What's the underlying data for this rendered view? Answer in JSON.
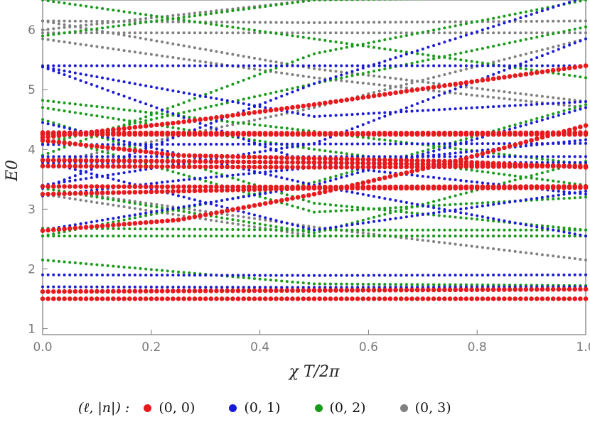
{
  "chart_data": {
    "type": "scatter",
    "xlabel": "χ T/2π",
    "ylabel": "E0",
    "xlim": [
      0.0,
      1.0
    ],
    "ylim": [
      0.9,
      6.5
    ],
    "x_ticks": [
      "0.0",
      "0.2",
      "0.4",
      "0.6",
      "0.8",
      "1.0"
    ],
    "y_ticks": [
      "1",
      "2",
      "3",
      "4",
      "5",
      "6"
    ],
    "grid": false,
    "legend_position": "bottom",
    "legend_title": "(ℓ, |n|) :",
    "series": [
      {
        "name": "(0, 0)",
        "color": "#e8191d",
        "curves": [
          {
            "x": [
              0,
              0.5,
              1
            ],
            "y": [
              1.5,
              1.5,
              1.5
            ]
          },
          {
            "x": [
              0,
              0.5,
              1
            ],
            "y": [
              1.62,
              1.64,
              1.66
            ]
          },
          {
            "x": [
              0,
              0.25,
              0.5,
              0.75,
              1
            ],
            "y": [
              2.64,
              2.82,
              3.25,
              3.78,
              4.4
            ]
          },
          {
            "x": [
              0,
              0.25,
              0.5,
              0.75,
              1
            ],
            "y": [
              3.25,
              3.3,
              3.35,
              3.35,
              3.36
            ]
          },
          {
            "x": [
              0,
              0.5,
              1
            ],
            "y": [
              3.38,
              3.37,
              3.38
            ]
          },
          {
            "x": [
              0,
              0.5,
              1
            ],
            "y": [
              3.72,
              3.7,
              3.72
            ]
          },
          {
            "x": [
              0,
              0.5,
              1
            ],
            "y": [
              3.82,
              3.78,
              3.72
            ]
          },
          {
            "x": [
              0,
              0.25,
              0.5,
              0.75,
              1
            ],
            "y": [
              4.15,
              3.9,
              3.85,
              3.8,
              3.7
            ]
          },
          {
            "x": [
              0,
              0.25,
              0.5,
              0.75,
              1
            ],
            "y": [
              4.2,
              4.45,
              4.75,
              5.08,
              5.4
            ]
          },
          {
            "x": [
              0,
              0.5,
              1
            ],
            "y": [
              4.25,
              4.25,
              4.25
            ]
          },
          {
            "x": [
              0,
              0.5,
              1
            ],
            "y": [
              4.28,
              4.27,
              4.28
            ]
          }
        ]
      },
      {
        "name": "(0, 1)",
        "color": "#1a1ad6",
        "curves": [
          {
            "x": [
              0,
              0.5,
              1
            ],
            "y": [
              1.7,
              1.69,
              1.7
            ]
          },
          {
            "x": [
              0,
              0.5,
              1
            ],
            "y": [
              1.9,
              1.89,
              1.9
            ]
          },
          {
            "x": [
              0,
              0.5,
              1
            ],
            "y": [
              3.78,
              3.78,
              3.78
            ]
          },
          {
            "x": [
              0,
              0.5,
              1
            ],
            "y": [
              3.88,
              3.88,
              3.88
            ]
          },
          {
            "x": [
              0,
              0.5,
              1
            ],
            "y": [
              4.08,
              4.09,
              4.1
            ]
          },
          {
            "x": [
              0,
              0.25,
              0.5,
              0.75,
              1
            ],
            "y": [
              3.22,
              3.48,
              3.7,
              3.93,
              4.16
            ]
          },
          {
            "x": [
              0,
              0.5,
              1
            ],
            "y": [
              5.4,
              5.4,
              5.4
            ]
          },
          {
            "x": [
              0,
              0.5,
              1
            ],
            "y": [
              3.8,
              2.65,
              3.3
            ]
          },
          {
            "x": [
              0,
              0.5,
              1
            ],
            "y": [
              2.65,
              3.4,
              4.7
            ]
          },
          {
            "x": [
              0,
              0.5,
              1
            ],
            "y": [
              3.4,
              4.1,
              5.85
            ]
          },
          {
            "x": [
              0,
              0.5,
              1
            ],
            "y": [
              3.35,
              5.1,
              6.55
            ]
          },
          {
            "x": [
              0,
              0.5,
              1
            ],
            "y": [
              5.38,
              3.75,
              3.25
            ]
          },
          {
            "x": [
              0,
              0.5,
              1
            ],
            "y": [
              4.45,
              3.4,
              2.55
            ]
          },
          {
            "x": [
              0,
              0.5,
              1
            ],
            "y": [
              5.38,
              4.55,
              4.8
            ]
          }
        ]
      },
      {
        "name": "(0, 2)",
        "color": "#1a9a1a",
        "curves": [
          {
            "x": [
              0,
              0.5,
              1
            ],
            "y": [
              2.15,
              1.75,
              1.72
            ]
          },
          {
            "x": [
              0,
              0.5,
              1
            ],
            "y": [
              2.55,
              2.55,
              2.55
            ]
          },
          {
            "x": [
              0,
              0.5,
              1
            ],
            "y": [
              2.68,
              2.65,
              2.65
            ]
          },
          {
            "x": [
              0,
              0.5,
              1
            ],
            "y": [
              4.82,
              4.3,
              3.75
            ]
          },
          {
            "x": [
              0,
              0.5,
              1
            ],
            "y": [
              4.7,
              4.0,
              3.4
            ]
          },
          {
            "x": [
              0,
              0.5,
              1
            ],
            "y": [
              4.5,
              3.1,
              2.65
            ]
          },
          {
            "x": [
              0,
              0.5,
              1
            ],
            "y": [
              4.25,
              2.95,
              3.2
            ]
          },
          {
            "x": [
              0,
              0.5,
              1
            ],
            "y": [
              3.35,
              2.6,
              3.8
            ]
          },
          {
            "x": [
              0,
              0.5,
              1
            ],
            "y": [
              2.55,
              3.45,
              4.75
            ]
          },
          {
            "x": [
              0,
              0.5,
              1
            ],
            "y": [
              4.1,
              5.1,
              6.05
            ]
          },
          {
            "x": [
              0,
              0.5,
              1
            ],
            "y": [
              3.9,
              5.6,
              6.5
            ]
          },
          {
            "x": [
              0,
              0.5,
              1
            ],
            "y": [
              5.9,
              6.5,
              6.55
            ]
          },
          {
            "x": [
              0,
              0.5,
              1
            ],
            "y": [
              6.5,
              5.85,
              5.2
            ]
          }
        ]
      },
      {
        "name": "(0, 3)",
        "color": "#808080",
        "curves": [
          {
            "x": [
              0,
              0.5,
              1
            ],
            "y": [
              6.15,
              6.12,
              6.15
            ]
          },
          {
            "x": [
              0,
              0.5,
              1
            ],
            "y": [
              5.95,
              5.95,
              5.95
            ]
          },
          {
            "x": [
              0,
              0.5,
              1
            ],
            "y": [
              5.85,
              5.2,
              4.7
            ]
          },
          {
            "x": [
              0,
              0.5,
              1
            ],
            "y": [
              6.15,
              5.35,
              4.8
            ]
          },
          {
            "x": [
              0,
              0.5,
              1
            ],
            "y": [
              6.0,
              6.5,
              6.55
            ]
          },
          {
            "x": [
              0,
              0.5,
              1
            ],
            "y": [
              3.35,
              2.7,
              2.15
            ]
          },
          {
            "x": [
              0,
              0.5,
              1
            ],
            "y": [
              3.25,
              2.55,
              2.55
            ]
          },
          {
            "x": [
              0,
              0.5,
              1
            ],
            "y": [
              3.75,
              4.7,
              5.85
            ]
          },
          {
            "x": [
              0,
              0.5,
              1
            ],
            "y": [
              4.3,
              4.25,
              4.3
            ]
          },
          {
            "x": [
              0,
              0.5,
              1
            ],
            "y": [
              3.72,
              3.72,
              3.72
            ]
          }
        ]
      }
    ]
  }
}
